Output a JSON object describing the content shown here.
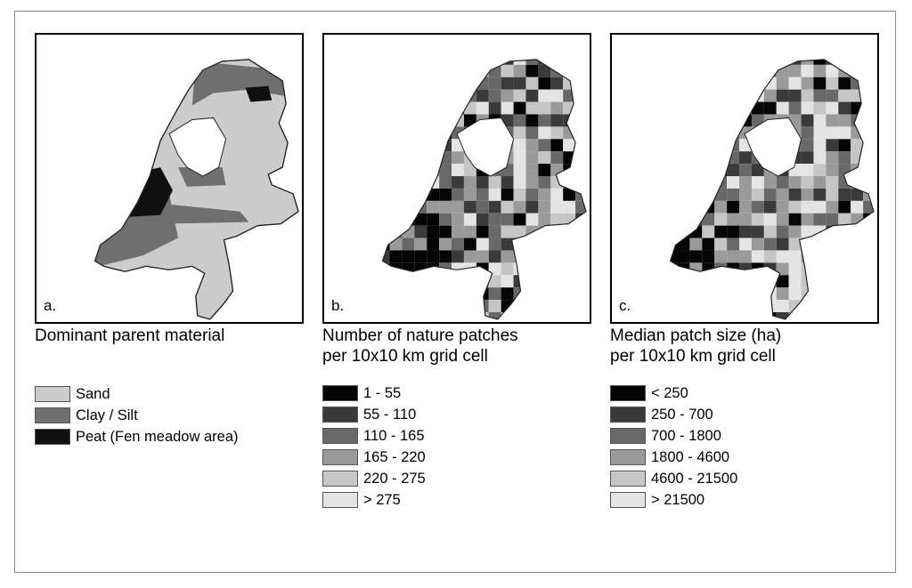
{
  "panels": [
    {
      "letter": "a.",
      "title_lines": [
        "Dominant parent material"
      ],
      "legend": [
        {
          "label": "Sand",
          "color": "#cccccc"
        },
        {
          "label": "Clay / Silt",
          "color": "#6f6f6f"
        },
        {
          "label": "Peat (Fen meadow area)",
          "color": "#101010"
        }
      ]
    },
    {
      "letter": "b.",
      "title_lines": [
        "Number of nature patches",
        "per 10x10 km grid cell"
      ],
      "legend": [
        {
          "label": "1 - 55",
          "color": "#050505"
        },
        {
          "label": "55 - 110",
          "color": "#3a3a3a"
        },
        {
          "label": "110 - 165",
          "color": "#686868"
        },
        {
          "label": "165 - 220",
          "color": "#9a9a9a"
        },
        {
          "label": "220 - 275",
          "color": "#c6c6c6"
        },
        {
          "label": "> 275",
          "color": "#e4e4e4"
        }
      ]
    },
    {
      "letter": "c.",
      "title_lines": [
        "Median patch size (ha)",
        "per 10x10 km grid cell"
      ],
      "legend": [
        {
          "label": "< 250",
          "color": "#050505"
        },
        {
          "label": "250 - 700",
          "color": "#3a3a3a"
        },
        {
          "label": "700 - 1800",
          "color": "#686868"
        },
        {
          "label": "1800 - 4600",
          "color": "#9a9a9a"
        },
        {
          "label": "4600 - 21500",
          "color": "#c6c6c6"
        },
        {
          "label": "> 21500",
          "color": "#e4e4e4"
        }
      ]
    }
  ]
}
